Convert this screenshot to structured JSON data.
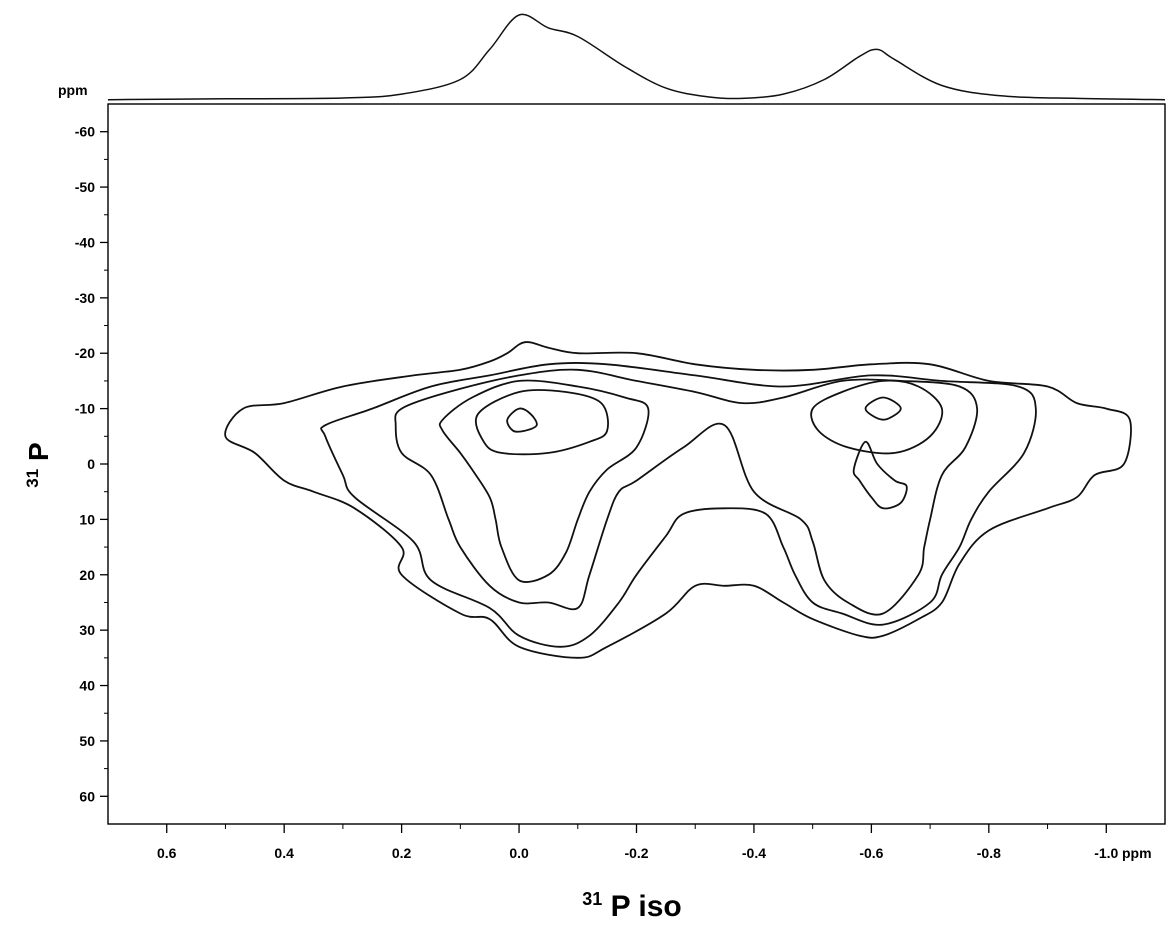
{
  "chart_data": {
    "type": "contour",
    "x_unit": "ppm",
    "y_unit": "ppm",
    "xlim": [
      0.7,
      -1.1
    ],
    "ylim": [
      65,
      -65
    ],
    "x_ticks": [
      "0.6",
      "0.4",
      "0.2",
      "0.0",
      "-0.2",
      "-0.4",
      "-0.6",
      "-0.8",
      "-1.0"
    ],
    "x_tick_values": [
      0.6,
      0.4,
      0.2,
      0.0,
      -0.2,
      -0.4,
      -0.6,
      -0.8,
      -1.0
    ],
    "y_ticks": [
      "-60",
      "-50",
      "-40",
      "-30",
      "-20",
      "-10",
      "0",
      "10",
      "20",
      "30",
      "40",
      "50",
      "60"
    ],
    "y_tick_values": [
      -60,
      -50,
      -40,
      -30,
      -20,
      -10,
      0,
      10,
      20,
      30,
      40,
      50,
      60
    ],
    "xlabel_sup": "31",
    "xlabel_main": "P iso",
    "ylabel_sup": "31",
    "ylabel_main": "P",
    "projection_x": [
      [
        0.7,
        1.5
      ],
      [
        0.5,
        2.5
      ],
      [
        0.3,
        3.5
      ],
      [
        0.2,
        8
      ],
      [
        0.1,
        25
      ],
      [
        0.05,
        60
      ],
      [
        0.0,
        100
      ],
      [
        -0.05,
        85
      ],
      [
        -0.1,
        75
      ],
      [
        -0.18,
        40
      ],
      [
        -0.25,
        15
      ],
      [
        -0.32,
        5
      ],
      [
        -0.38,
        3
      ],
      [
        -0.45,
        8
      ],
      [
        -0.52,
        25
      ],
      [
        -0.58,
        52
      ],
      [
        -0.61,
        60
      ],
      [
        -0.64,
        48
      ],
      [
        -0.72,
        18
      ],
      [
        -0.82,
        6
      ],
      [
        -0.95,
        3
      ],
      [
        -1.1,
        1.5
      ]
    ],
    "contours": [
      [
        [
          0.5,
          -5
        ],
        [
          0.47,
          -10
        ],
        [
          0.4,
          -11
        ],
        [
          0.3,
          -14
        ],
        [
          0.18,
          -16
        ],
        [
          0.1,
          -17
        ],
        [
          0.05,
          -18.5
        ],
        [
          0.02,
          -20
        ],
        [
          -0.01,
          -22
        ],
        [
          -0.05,
          -21
        ],
        [
          -0.1,
          -20
        ],
        [
          -0.2,
          -20
        ],
        [
          -0.3,
          -18
        ],
        [
          -0.4,
          -17
        ],
        [
          -0.5,
          -17
        ],
        [
          -0.6,
          -18
        ],
        [
          -0.7,
          -18
        ],
        [
          -0.8,
          -15
        ],
        [
          -0.9,
          -14
        ],
        [
          -0.95,
          -11
        ],
        [
          -1.0,
          -10
        ],
        [
          -1.04,
          -8
        ],
        [
          -1.03,
          0
        ],
        [
          -0.98,
          2
        ],
        [
          -0.95,
          6
        ],
        [
          -0.9,
          8
        ],
        [
          -0.8,
          12
        ],
        [
          -0.75,
          18
        ],
        [
          -0.72,
          25
        ],
        [
          -0.68,
          28
        ],
        [
          -0.62,
          31
        ],
        [
          -0.58,
          31
        ],
        [
          -0.5,
          28
        ],
        [
          -0.45,
          25
        ],
        [
          -0.4,
          22
        ],
        [
          -0.35,
          22
        ],
        [
          -0.3,
          22
        ],
        [
          -0.25,
          27
        ],
        [
          -0.15,
          33
        ],
        [
          -0.1,
          35
        ],
        [
          0.0,
          33
        ],
        [
          0.05,
          28
        ],
        [
          0.1,
          27
        ],
        [
          0.2,
          20
        ],
        [
          0.2,
          15
        ],
        [
          0.28,
          8
        ],
        [
          0.35,
          5
        ],
        [
          0.4,
          3
        ],
        [
          0.45,
          -2
        ],
        [
          0.5,
          -5
        ]
      ],
      [
        [
          0.33,
          -7
        ],
        [
          0.25,
          -10
        ],
        [
          0.15,
          -14
        ],
        [
          0.05,
          -16
        ],
        [
          -0.05,
          -18
        ],
        [
          -0.15,
          -18
        ],
        [
          -0.3,
          -16
        ],
        [
          -0.45,
          -14
        ],
        [
          -0.6,
          -16
        ],
        [
          -0.72,
          -15
        ],
        [
          -0.85,
          -14
        ],
        [
          -0.88,
          -10
        ],
        [
          -0.86,
          -2
        ],
        [
          -0.8,
          5
        ],
        [
          -0.77,
          10
        ],
        [
          -0.75,
          15
        ],
        [
          -0.72,
          20
        ],
        [
          -0.7,
          25
        ],
        [
          -0.62,
          29
        ],
        [
          -0.55,
          27
        ],
        [
          -0.5,
          25
        ],
        [
          -0.47,
          20
        ],
        [
          -0.45,
          15
        ],
        [
          -0.42,
          9
        ],
        [
          -0.35,
          8
        ],
        [
          -0.28,
          9
        ],
        [
          -0.25,
          13
        ],
        [
          -0.2,
          20
        ],
        [
          -0.17,
          25
        ],
        [
          -0.12,
          31
        ],
        [
          -0.07,
          33
        ],
        [
          0.0,
          31
        ],
        [
          0.05,
          26
        ],
        [
          0.15,
          21
        ],
        [
          0.18,
          14
        ],
        [
          0.28,
          6
        ],
        [
          0.3,
          2
        ],
        [
          0.33,
          -5
        ],
        [
          0.33,
          -7
        ]
      ],
      [
        [
          0.2,
          -10
        ],
        [
          0.12,
          -13
        ],
        [
          0.0,
          -16
        ],
        [
          -0.1,
          -17
        ],
        [
          -0.2,
          -15
        ],
        [
          -0.3,
          -13
        ],
        [
          -0.38,
          -11
        ],
        [
          -0.45,
          -12
        ],
        [
          -0.55,
          -15
        ],
        [
          -0.65,
          -15
        ],
        [
          -0.75,
          -14
        ],
        [
          -0.78,
          -10
        ],
        [
          -0.76,
          -3
        ],
        [
          -0.72,
          2
        ],
        [
          -0.7,
          10
        ],
        [
          -0.69,
          15
        ],
        [
          -0.68,
          20
        ],
        [
          -0.62,
          27
        ],
        [
          -0.56,
          25
        ],
        [
          -0.52,
          21
        ],
        [
          -0.5,
          14
        ],
        [
          -0.48,
          10
        ],
        [
          -0.4,
          5
        ],
        [
          -0.35,
          -7
        ],
        [
          -0.28,
          -3
        ],
        [
          -0.2,
          3
        ],
        [
          -0.17,
          5
        ],
        [
          -0.15,
          10
        ],
        [
          -0.12,
          20
        ],
        [
          -0.1,
          26
        ],
        [
          -0.05,
          25
        ],
        [
          0.0,
          25
        ],
        [
          0.05,
          22
        ],
        [
          0.1,
          15
        ],
        [
          0.12,
          10
        ],
        [
          0.15,
          2
        ],
        [
          0.2,
          -2
        ],
        [
          0.21,
          -7
        ],
        [
          0.2,
          -10
        ]
      ],
      [
        [
          0.13,
          -8
        ],
        [
          0.08,
          -12
        ],
        [
          0.0,
          -15
        ],
        [
          -0.1,
          -14
        ],
        [
          -0.18,
          -12
        ],
        [
          -0.22,
          -10
        ],
        [
          -0.2,
          -3
        ],
        [
          -0.15,
          1
        ],
        [
          -0.12,
          5
        ],
        [
          -0.1,
          10
        ],
        [
          -0.08,
          16
        ],
        [
          -0.05,
          20
        ],
        [
          0.0,
          21
        ],
        [
          0.03,
          15
        ],
        [
          0.04,
          10
        ],
        [
          0.05,
          6
        ],
        [
          0.08,
          1
        ],
        [
          0.1,
          -2
        ],
        [
          0.13,
          -6
        ],
        [
          0.13,
          -8
        ]
      ],
      [
        [
          0.07,
          -9
        ],
        [
          0.0,
          -13
        ],
        [
          -0.08,
          -13
        ],
        [
          -0.14,
          -11
        ],
        [
          -0.15,
          -6
        ],
        [
          -0.12,
          -4
        ],
        [
          -0.05,
          -2
        ],
        [
          0.03,
          -2
        ],
        [
          0.06,
          -4
        ],
        [
          0.07,
          -9
        ]
      ],
      [
        [
          0.02,
          -8
        ],
        [
          0.0,
          -10
        ],
        [
          -0.02,
          -9
        ],
        [
          -0.03,
          -7
        ],
        [
          -0.01,
          -6
        ],
        [
          0.01,
          -6
        ],
        [
          0.02,
          -8
        ]
      ],
      [
        [
          -0.5,
          -10
        ],
        [
          -0.55,
          -13
        ],
        [
          -0.62,
          -15
        ],
        [
          -0.68,
          -14
        ],
        [
          -0.72,
          -10
        ],
        [
          -0.7,
          -5
        ],
        [
          -0.64,
          -2
        ],
        [
          -0.56,
          -3
        ],
        [
          -0.51,
          -6
        ],
        [
          -0.5,
          -10
        ]
      ],
      [
        [
          -0.59,
          -10
        ],
        [
          -0.62,
          -12
        ],
        [
          -0.65,
          -10
        ],
        [
          -0.62,
          -8
        ],
        [
          -0.59,
          -10
        ]
      ],
      [
        [
          -0.59,
          -4
        ],
        [
          -0.61,
          0
        ],
        [
          -0.64,
          3
        ],
        [
          -0.66,
          4
        ],
        [
          -0.65,
          7
        ],
        [
          -0.62,
          8
        ],
        [
          -0.6,
          6
        ],
        [
          -0.58,
          3
        ],
        [
          -0.57,
          1
        ],
        [
          -0.59,
          -4
        ]
      ]
    ]
  }
}
